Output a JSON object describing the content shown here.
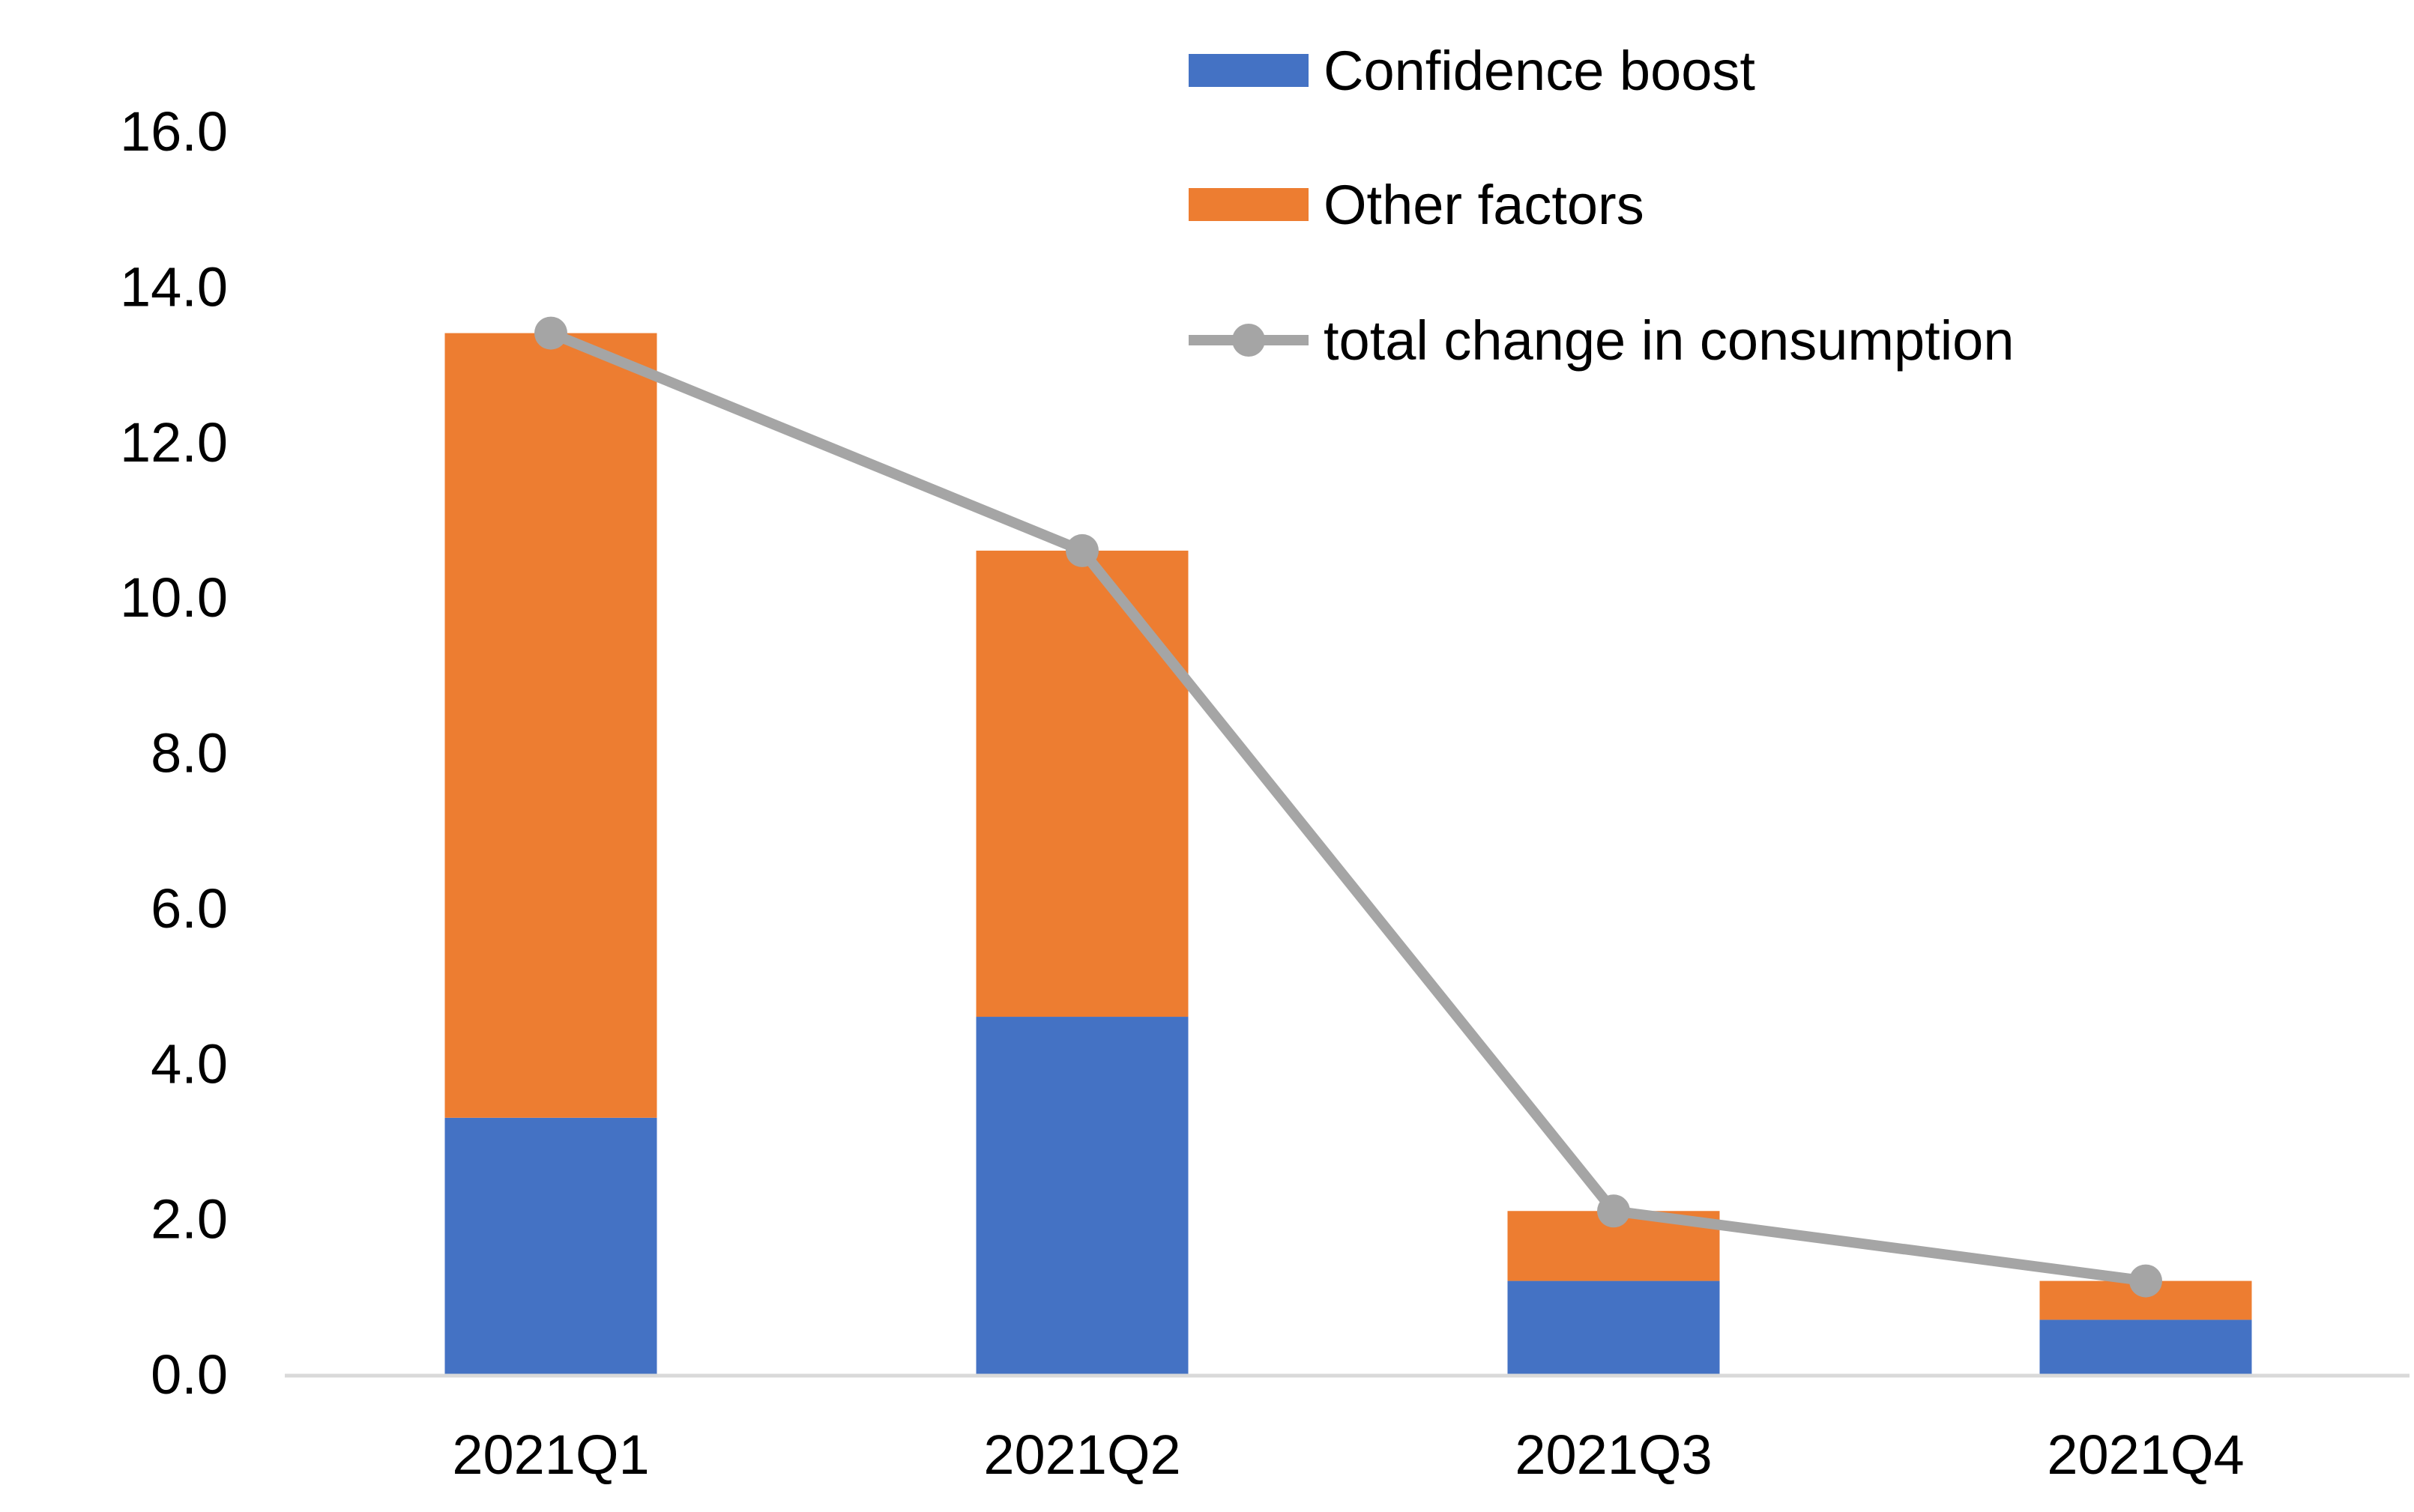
{
  "chart_data": {
    "type": "bar",
    "stacked": true,
    "categories": [
      "2021Q1",
      "2021Q2",
      "2021Q3",
      "2021Q4"
    ],
    "series": [
      {
        "name": "Confidence boost",
        "type": "bar",
        "color": "#4472C4",
        "values": [
          3.3,
          4.6,
          1.2,
          0.7
        ]
      },
      {
        "name": "Other factors",
        "type": "bar",
        "color": "#ED7D31",
        "values": [
          10.1,
          6.0,
          0.9,
          0.5
        ]
      },
      {
        "name": "total change in consumption",
        "type": "line",
        "color": "#A5A5A5",
        "values": [
          13.4,
          10.6,
          2.1,
          1.2
        ]
      }
    ],
    "ylim": [
      0,
      16
    ],
    "yticks": [
      "0.0",
      "2.0",
      "4.0",
      "6.0",
      "8.0",
      "10.0",
      "12.0",
      "14.0",
      "16.0"
    ],
    "grid": false,
    "legend": "top-right"
  }
}
